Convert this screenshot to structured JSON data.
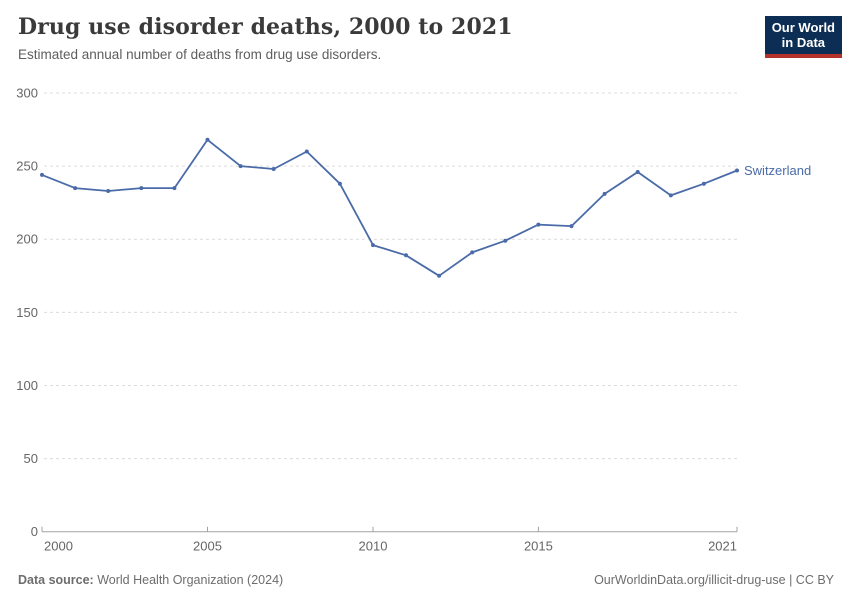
{
  "header": {
    "title": "Drug use disorder deaths, 2000 to 2021",
    "subtitle": "Estimated annual number of deaths from drug use disorders.",
    "logo": {
      "line1": "Our World",
      "line2": "in Data",
      "bg_color": "#0d2e54",
      "accent_color": "#b43229"
    }
  },
  "chart_data": {
    "type": "line",
    "title": "Drug use disorder deaths, 2000 to 2021",
    "subtitle": "Estimated annual number of deaths from drug use disorders.",
    "xlabel": "",
    "ylabel": "",
    "xlim": [
      2000,
      2021
    ],
    "ylim": [
      0,
      300
    ],
    "xticks": [
      2000,
      2005,
      2010,
      2015,
      2021
    ],
    "yticks": [
      0,
      50,
      100,
      150,
      200,
      250,
      300
    ],
    "grid": "horizontal-dashed",
    "legend_position": "end-of-line-label",
    "series": [
      {
        "name": "Switzerland",
        "color": "#4a6ba8",
        "x": [
          2000,
          2001,
          2002,
          2003,
          2004,
          2005,
          2006,
          2007,
          2008,
          2009,
          2010,
          2011,
          2012,
          2013,
          2014,
          2015,
          2016,
          2017,
          2018,
          2019,
          2020,
          2021
        ],
        "values": [
          244,
          235,
          233,
          235,
          235,
          268,
          250,
          248,
          260,
          238,
          196,
          189,
          175,
          191,
          199,
          210,
          209,
          231,
          246,
          230,
          238,
          247
        ]
      }
    ]
  },
  "footer": {
    "source_label": "Data source:",
    "source_value": "World Health Organization (2024)",
    "url": "OurWorldinData.org/illicit-drug-use",
    "separator": " | ",
    "license": "CC BY"
  }
}
